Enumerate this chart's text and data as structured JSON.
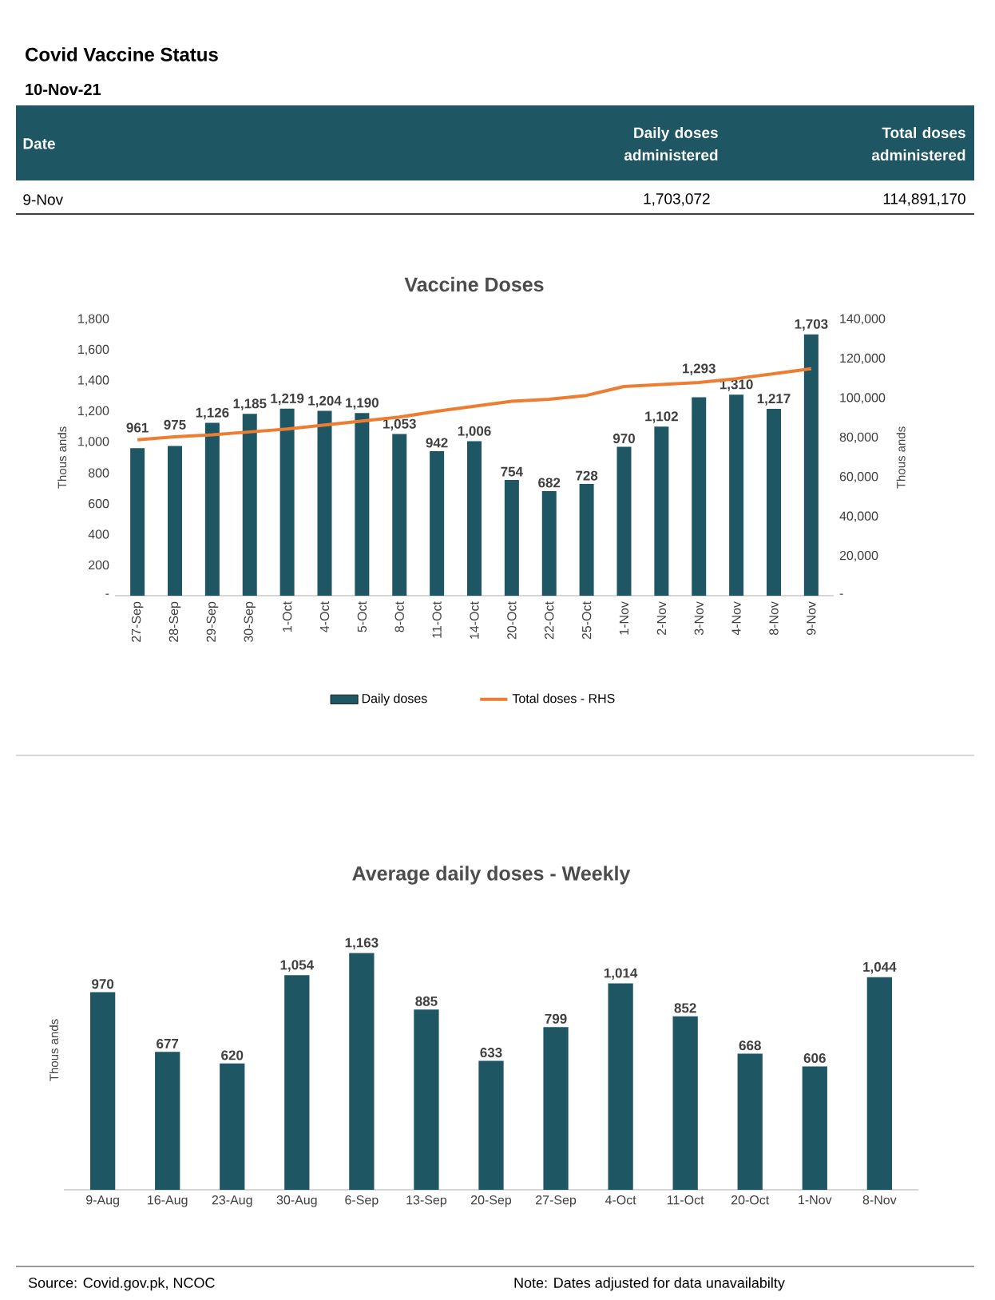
{
  "chart_data": [
    {
      "type": "other",
      "title": "Covid Vaccine Status",
      "subtitle": "10-Nov-21",
      "annotations": [
        "Date",
        "Daily doses administered",
        "Total doses administered",
        "9-Nov",
        "1,703,072",
        "114,891,170"
      ]
    },
    {
      "type": "bar",
      "title": "Vaccine Doses",
      "ylabel": "Thous ands",
      "y2label": "Thous ands",
      "categories": [
        "27-Sep",
        "28-Sep",
        "29-Sep",
        "30-Sep",
        "1-Oct",
        "4-Oct",
        "5-Oct",
        "8-Oct",
        "11-Oct",
        "14-Oct",
        "20-Oct",
        "22-Oct",
        "25-Oct",
        "1-Nov",
        "2-Nov",
        "3-Nov",
        "4-Nov",
        "8-Nov",
        "9-Nov"
      ],
      "series": [
        {
          "name": "Daily doses",
          "type": "bar",
          "color": "#1f5663",
          "values": [
            961,
            975,
            1126,
            1185,
            1219,
            1204,
            1190,
            1053,
            942,
            1006,
            754,
            682,
            728,
            970,
            1102,
            1293,
            1310,
            1217,
            1703
          ],
          "value_labels": [
            "961",
            "975",
            "1,126",
            "1,185",
            "1,219",
            "1,204",
            "1,190",
            "1,053",
            "942",
            "1,006",
            "754",
            "682",
            "728",
            "970",
            "1,102",
            "1,293",
            "1,310",
            "1,217",
            "1,703"
          ]
        },
        {
          "name": "Total doses - RHS",
          "type": "line",
          "axis": "y2",
          "color": "#ed7d31",
          "values": [
            79000,
            80500,
            81500,
            83000,
            84500,
            86500,
            88500,
            90500,
            93500,
            96000,
            98500,
            99500,
            101500,
            106000,
            107000,
            108000,
            110000,
            112500,
            115000
          ]
        }
      ],
      "ylim": [
        0,
        1800
      ],
      "yticks": [
        {
          "value": 0,
          "label": "-"
        },
        200,
        400,
        600,
        800,
        {
          "value": 1000,
          "label": "1,000"
        },
        {
          "value": 1200,
          "label": "1,200"
        },
        {
          "value": 1400,
          "label": "1,400"
        },
        {
          "value": 1600,
          "label": "1,600"
        },
        {
          "value": 1800,
          "label": "1,800"
        }
      ],
      "y2lim": [
        0,
        140000
      ],
      "y2ticks": [
        {
          "value": 0,
          "label": "-"
        },
        {
          "value": 20000,
          "label": "20,000"
        },
        {
          "value": 40000,
          "label": "40,000"
        },
        {
          "value": 60000,
          "label": "60,000"
        },
        {
          "value": 80000,
          "label": "80,000"
        },
        {
          "value": 100000,
          "label": "100,000"
        },
        {
          "value": 120000,
          "label": "120,000"
        },
        {
          "value": 140000,
          "label": "140,000"
        }
      ],
      "legend": "bottom",
      "grid": false
    },
    {
      "type": "bar",
      "title": "Average daily doses - Weekly",
      "ylabel": "Thous ands",
      "tick_labels": "x",
      "categories": [
        "9-Aug",
        "16-Aug",
        "23-Aug",
        "30-Aug",
        "6-Sep",
        "13-Sep",
        "20-Sep",
        "27-Sep",
        "4-Oct",
        "11-Oct",
        "20-Oct",
        "1-Nov",
        "8-Nov"
      ],
      "values": [
        970,
        677,
        620,
        1054,
        1163,
        885,
        633,
        799,
        1014,
        852,
        668,
        606,
        1044
      ],
      "value_labels": [
        "970",
        "677",
        "620",
        "1,054",
        "1,163",
        "885",
        "633",
        "799",
        "1,014",
        "852",
        "668",
        "606",
        "1,044"
      ],
      "color": "#1f5663",
      "grid": false,
      "annotations": [
        "Source: Covid.gov.pk, NCOC",
        "Note: Dates adjusted for data unavailabilty"
      ]
    }
  ]
}
